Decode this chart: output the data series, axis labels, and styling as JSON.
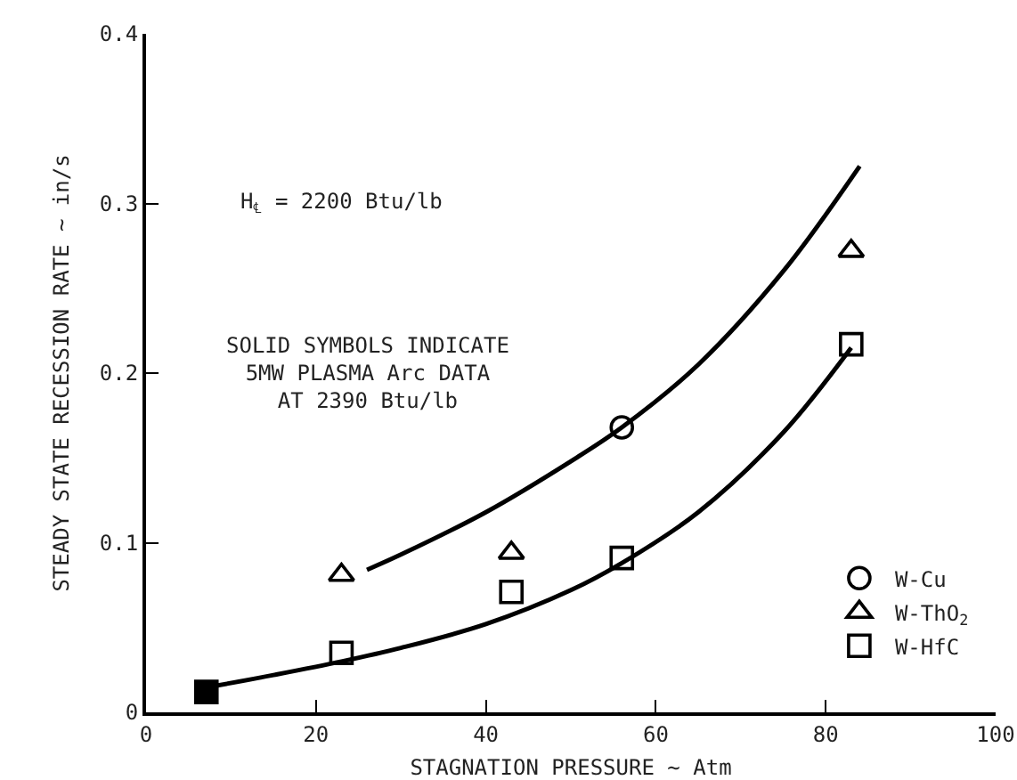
{
  "chart_data": {
    "type": "scatter",
    "xlabel": "STAGNATION PRESSURE ~ Atm",
    "ylabel": "STEADY STATE RECESSION RATE ~ in/s",
    "xlim": [
      0,
      100
    ],
    "xticks": [
      0,
      20,
      40,
      60,
      80,
      100
    ],
    "ylim": [
      0,
      0.4
    ],
    "yticks": [
      0,
      0.1,
      0.2,
      0.3,
      0.4
    ],
    "grid": false,
    "legend": "bottom right",
    "annotations": [
      "H$_{℄}$ = 2200 Btu/lb",
      "SOLID SYMBOLS INDICATE\n5MW PLASMA Arc DATA\nAT 2390 Btu/lb"
    ],
    "series": [
      {
        "type": "line",
        "color": "#000000",
        "marker": "none",
        "line_style": "solid",
        "x": [
          26,
          30,
          40,
          50,
          56,
          65,
          75,
          84
        ],
        "values": [
          0.084,
          0.093,
          0.118,
          0.148,
          0.168,
          0.205,
          0.26,
          0.322
        ]
      },
      {
        "type": "line",
        "color": "#000000",
        "marker": "none",
        "line_style": "solid",
        "x": [
          7.5,
          15,
          23,
          30,
          40,
          50,
          56,
          65,
          75,
          83
        ],
        "values": [
          0.015,
          0.022,
          0.03,
          0.038,
          0.052,
          0.072,
          0.088,
          0.118,
          0.165,
          0.215
        ]
      },
      {
        "name": "W-Cu",
        "color": "#000000",
        "marker": "circle",
        "x": [
          56
        ],
        "values": [
          0.168
        ]
      },
      {
        "name": "W-ThO$_{2}$",
        "color": "#000000",
        "marker": "triangle",
        "x": [
          23,
          43,
          83
        ],
        "values": [
          0.081,
          0.094,
          0.272
        ]
      },
      {
        "name": "W-HfC",
        "color": "#000000",
        "marker": "square",
        "x": [
          23,
          43,
          56,
          83
        ],
        "values": [
          0.035,
          0.071,
          0.091,
          0.217
        ]
      },
      {
        "color": "#000000",
        "marker": "square",
        "x": [
          7.1
        ],
        "values": [
          0.012
        ]
      }
    ]
  }
}
